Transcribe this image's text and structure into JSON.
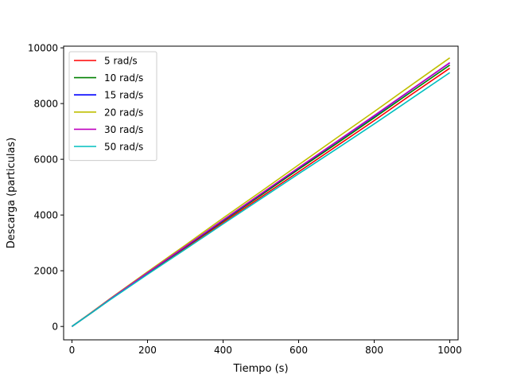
{
  "chart_data": {
    "type": "line",
    "title": "",
    "xlabel": "Tiempo (s)",
    "ylabel": "Descarga (particulas)",
    "xlim": [
      -22,
      1022
    ],
    "ylim": [
      -480,
      10060
    ],
    "xticks": [
      0,
      200,
      400,
      600,
      800,
      1000
    ],
    "yticks": [
      0,
      2000,
      4000,
      6000,
      8000,
      10000
    ],
    "grid": false,
    "legend_position": "upper left",
    "series": [
      {
        "name": "5 rad/s",
        "color": "#ff0000",
        "x": [
          0,
          50,
          100,
          200,
          300,
          400,
          500,
          600,
          700,
          800,
          900,
          1000
        ],
        "y": [
          0,
          470,
          960,
          1900,
          2810,
          3730,
          4640,
          5550,
          6470,
          7390,
          8340,
          9270
        ]
      },
      {
        "name": "10 rad/s",
        "color": "#008000",
        "x": [
          0,
          50,
          100,
          200,
          300,
          400,
          500,
          600,
          700,
          800,
          900,
          1000
        ],
        "y": [
          0,
          480,
          970,
          1920,
          2850,
          3780,
          4710,
          5640,
          6560,
          7490,
          8440,
          9380
        ]
      },
      {
        "name": "15 rad/s",
        "color": "#0000ff",
        "x": [
          0,
          50,
          100,
          200,
          300,
          400,
          500,
          600,
          700,
          800,
          900,
          1000
        ],
        "y": [
          0,
          480,
          975,
          1930,
          2860,
          3810,
          4750,
          5690,
          6620,
          7550,
          8510,
          9460
        ]
      },
      {
        "name": "20 rad/s",
        "color": "#bfbf00",
        "x": [
          0,
          50,
          100,
          200,
          300,
          400,
          500,
          600,
          700,
          800,
          900,
          1000
        ],
        "y": [
          0,
          490,
          990,
          1960,
          2920,
          3890,
          4840,
          5800,
          6760,
          7710,
          8680,
          9640
        ]
      },
      {
        "name": "30 rad/s",
        "color": "#bf00bf",
        "x": [
          0,
          50,
          100,
          200,
          300,
          400,
          500,
          600,
          700,
          800,
          900,
          1000
        ],
        "y": [
          0,
          480,
          975,
          1930,
          2870,
          3820,
          4760,
          5700,
          6630,
          7570,
          8520,
          9470
        ]
      },
      {
        "name": "50 rad/s",
        "color": "#00bfbf",
        "x": [
          0,
          50,
          100,
          200,
          300,
          400,
          500,
          600,
          700,
          800,
          900,
          1000
        ],
        "y": [
          0,
          470,
          950,
          1870,
          2770,
          3680,
          4580,
          5480,
          6370,
          7270,
          8190,
          9110
        ]
      }
    ]
  }
}
